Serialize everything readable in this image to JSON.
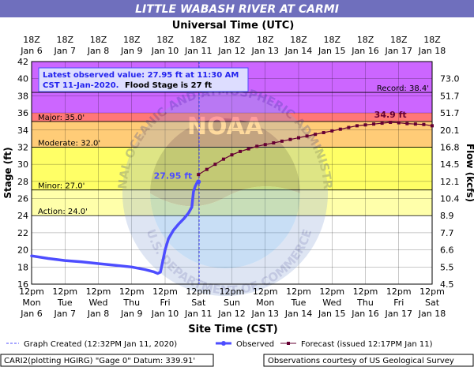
{
  "header": {
    "title": "LITTLE WABASH RIVER AT CARMI",
    "top_axis_title": "Universal Time (UTC)",
    "bottom_axis_title": "Site Time (CST)",
    "left_axis_title": "Stage (ft)",
    "right_axis_title": "Flow (kcfs)"
  },
  "info_box": {
    "line1": "Latest observed value: 27.95 ft at 11:30 AM",
    "line2_prefix": "CST 11-Jan-2020.",
    "line2_suffix": "Flood Stage is 27 ft"
  },
  "footer": {
    "left": "CARI2(plotting HGIRG) \"Gage 0\" Datum: 339.91'",
    "right": "Observations courtesy of US Geological Survey"
  },
  "legend": {
    "graph_created": "Graph Created (12:32PM Jan 11, 2020)",
    "observed": "Observed",
    "forecast": "Forecast (issued 12:17PM Jan 11)"
  },
  "watermark": {
    "arc_top": "NATIONAL OCEANIC AND ATMOSPHERIC ADMINISTRATION",
    "arc_bottom": "U.S. DEPARTMENT OF COMMERCE",
    "center": "NOAA"
  },
  "colors": {
    "record": "#cc66ff",
    "major": "#ff7777",
    "moderate": "#ffcc77",
    "minor": "#ffff66",
    "action": "#ffffaa",
    "normal": "#ffffff",
    "observed": "#4d4dff",
    "forecast": "#660033",
    "header_bg": "#6f6fbd",
    "plot_border": "#000000"
  },
  "chart_data": {
    "type": "line",
    "title": "LITTLE WABASH RIVER AT CARMI",
    "x_range": [
      "Jan 6 12pm",
      "Jan 18 12pm"
    ],
    "y_range": [
      16,
      42
    ],
    "grid": true,
    "x_ticks_utc": [
      {
        "top": "18Z",
        "bottom": "Jan 6"
      },
      {
        "top": "18Z",
        "bottom": "Jan 7"
      },
      {
        "top": "18Z",
        "bottom": "Jan 8"
      },
      {
        "top": "18Z",
        "bottom": "Jan 9"
      },
      {
        "top": "18Z",
        "bottom": "Jan 10"
      },
      {
        "top": "18Z",
        "bottom": "Jan 11"
      },
      {
        "top": "18Z",
        "bottom": "Jan 12"
      },
      {
        "top": "18Z",
        "bottom": "Jan 13"
      },
      {
        "top": "18Z",
        "bottom": "Jan 14"
      },
      {
        "top": "18Z",
        "bottom": "Jan 15"
      },
      {
        "top": "18Z",
        "bottom": "Jan 16"
      },
      {
        "top": "18Z",
        "bottom": "Jan 17"
      },
      {
        "top": "18Z",
        "bottom": "Jan 18"
      }
    ],
    "x_ticks_local": [
      {
        "time": "12pm",
        "day": "Mon",
        "date": "Jan 6"
      },
      {
        "time": "12pm",
        "day": "Tue",
        "date": "Jan 7"
      },
      {
        "time": "12pm",
        "day": "Wed",
        "date": "Jan 8"
      },
      {
        "time": "12pm",
        "day": "Thu",
        "date": "Jan 9"
      },
      {
        "time": "12pm",
        "day": "Fri",
        "date": "Jan 10"
      },
      {
        "time": "12pm",
        "day": "Sat",
        "date": "Jan 11"
      },
      {
        "time": "12pm",
        "day": "Sun",
        "date": "Jan 12"
      },
      {
        "time": "12pm",
        "day": "Mon",
        "date": "Jan 13"
      },
      {
        "time": "12pm",
        "day": "Tue",
        "date": "Jan 14"
      },
      {
        "time": "12pm",
        "day": "Wed",
        "date": "Jan 15"
      },
      {
        "time": "12pm",
        "day": "Thu",
        "date": "Jan 16"
      },
      {
        "time": "12pm",
        "day": "Fri",
        "date": "Jan 17"
      },
      {
        "time": "12pm",
        "day": "Sat",
        "date": "Jan 18"
      }
    ],
    "y_ticks": [
      16,
      18,
      20,
      22,
      24,
      26,
      28,
      30,
      32,
      34,
      36,
      38,
      40,
      42
    ],
    "flow_ticks": [
      {
        "stage": 16,
        "label": "4.5"
      },
      {
        "stage": 18,
        "label": "5.5"
      },
      {
        "stage": 20,
        "label": "6.6"
      },
      {
        "stage": 22,
        "label": "7.7"
      },
      {
        "stage": 24,
        "label": "8.9"
      },
      {
        "stage": 26,
        "label": "10.4"
      },
      {
        "stage": 28,
        "label": "12.1"
      },
      {
        "stage": 30,
        "label": "14.5"
      },
      {
        "stage": 32,
        "label": "16.8"
      },
      {
        "stage": 34,
        "label": "20.1"
      },
      {
        "stage": 36,
        "label": "51.7"
      },
      {
        "stage": 38,
        "label": "51.7"
      },
      {
        "stage": 40,
        "label": "73.0"
      }
    ],
    "flood_categories": [
      {
        "name": "Record",
        "label": "Record: 38.4'",
        "stage": 38.4
      },
      {
        "name": "Major",
        "label": "Major: 35.0'",
        "stage": 35.0
      },
      {
        "name": "Moderate",
        "label": "Moderate: 32.0'",
        "stage": 32.0
      },
      {
        "name": "Minor",
        "label": "Minor: 27.0'",
        "stage": 27.0
      },
      {
        "name": "Action",
        "label": "Action: 24.0'",
        "stage": 24.0
      }
    ],
    "graph_created_day": 5.02,
    "series": [
      {
        "name": "Observed",
        "x_days": [
          0.0,
          0.5,
          1.0,
          1.5,
          2.0,
          2.5,
          3.0,
          3.4,
          3.65,
          3.78,
          3.86,
          3.92,
          4.0,
          4.1,
          4.25,
          4.4,
          4.55,
          4.7,
          4.8,
          4.85,
          4.9,
          4.95,
          5.0
        ],
        "y": [
          19.3,
          19.0,
          18.75,
          18.6,
          18.4,
          18.2,
          18.0,
          17.7,
          17.45,
          17.25,
          17.4,
          18.5,
          20.0,
          21.3,
          22.3,
          23.0,
          23.6,
          24.3,
          25.0,
          26.8,
          27.4,
          27.8,
          27.95
        ]
      },
      {
        "name": "Forecast",
        "x_days": [
          5.0,
          5.25,
          5.5,
          5.75,
          6.0,
          6.25,
          6.5,
          6.75,
          7.0,
          7.25,
          7.5,
          7.75,
          8.0,
          8.25,
          8.5,
          8.75,
          9.0,
          9.25,
          9.5,
          9.75,
          10.0,
          10.25,
          10.5,
          10.75,
          11.0,
          11.25,
          11.5,
          11.75,
          12.0
        ],
        "y": [
          28.8,
          29.4,
          30.0,
          30.6,
          31.1,
          31.5,
          31.8,
          32.1,
          32.3,
          32.5,
          32.7,
          32.9,
          33.1,
          33.3,
          33.5,
          33.7,
          33.9,
          34.1,
          34.3,
          34.5,
          34.6,
          34.7,
          34.8,
          34.9,
          34.85,
          34.75,
          34.7,
          34.65,
          34.5
        ]
      }
    ],
    "annotations": [
      {
        "text": "27.95 ft",
        "series": "Observed"
      },
      {
        "text": "34.9 ft",
        "series": "Forecast"
      }
    ]
  }
}
